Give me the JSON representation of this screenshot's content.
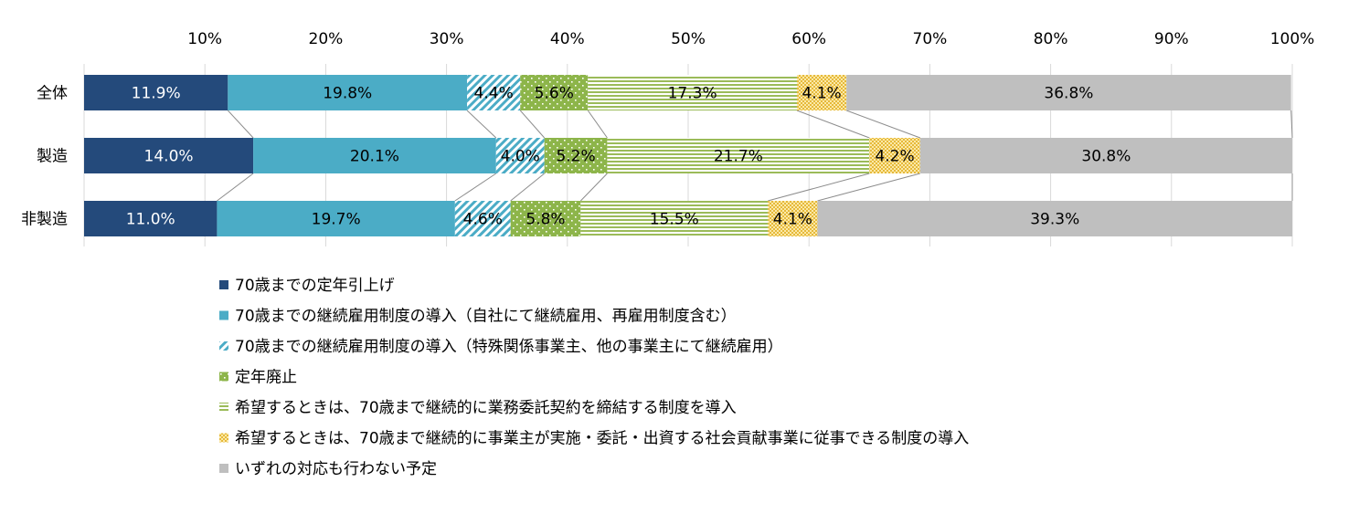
{
  "chart_data": {
    "type": "bar",
    "orientation": "horizontal",
    "stacked": true,
    "categories": [
      "全体",
      "製造",
      "非製造"
    ],
    "xlim": [
      0,
      100
    ],
    "x_ticks": [
      "10%",
      "20%",
      "30%",
      "40%",
      "50%",
      "60%",
      "70%",
      "80%",
      "90%",
      "100%"
    ],
    "grid": true,
    "legend_position": "bottom",
    "series": [
      {
        "name": "70歳までの定年引上げ",
        "values": [
          11.9,
          14.0,
          11.0
        ],
        "labels": [
          "11.9%",
          "14.0%",
          "11.0%"
        ],
        "color": "#244a7b",
        "pattern": "solid"
      },
      {
        "name": "70歳までの継続雇用制度の導入（自社にて継続雇用、再雇用制度含む）",
        "values": [
          19.8,
          20.1,
          19.7
        ],
        "labels": [
          "19.8%",
          "20.1%",
          "19.7%"
        ],
        "color": "#4bacc6",
        "pattern": "solid"
      },
      {
        "name": "70歳までの継続雇用制度の導入（特殊関係事業主、他の事業主にて継続雇用）",
        "values": [
          4.4,
          4.0,
          4.6
        ],
        "labels": [
          "4.4%",
          "4.0%",
          "4.6%"
        ],
        "color": "#4bacc6",
        "pattern": "diagonal"
      },
      {
        "name": "定年廃止",
        "values": [
          5.6,
          5.2,
          5.8
        ],
        "labels": [
          "5.6%",
          "5.2%",
          "5.8%"
        ],
        "color": "#8db54a",
        "pattern": "dots"
      },
      {
        "name": "希望するときは、70歳まで継続的に業務委託契約を締結する制度を導入",
        "values": [
          17.3,
          21.7,
          15.5
        ],
        "labels": [
          "17.3%",
          "21.7%",
          "15.5%"
        ],
        "color": "#9bbb59",
        "pattern": "horizontal"
      },
      {
        "name": "希望するときは、70歳まで継続的に事業主が実施・委託・出資する社会貢献事業に従事できる制度の導入",
        "values": [
          4.1,
          4.2,
          4.1
        ],
        "labels": [
          "4.1%",
          "4.2%",
          "4.1%"
        ],
        "color": "#f2c84b",
        "pattern": "checker"
      },
      {
        "name": "いずれの対応も行わない予定",
        "values": [
          36.8,
          30.8,
          39.3
        ],
        "labels": [
          "36.8%",
          "30.8%",
          "39.3%"
        ],
        "color": "#bfbfbf",
        "pattern": "solid"
      }
    ]
  }
}
